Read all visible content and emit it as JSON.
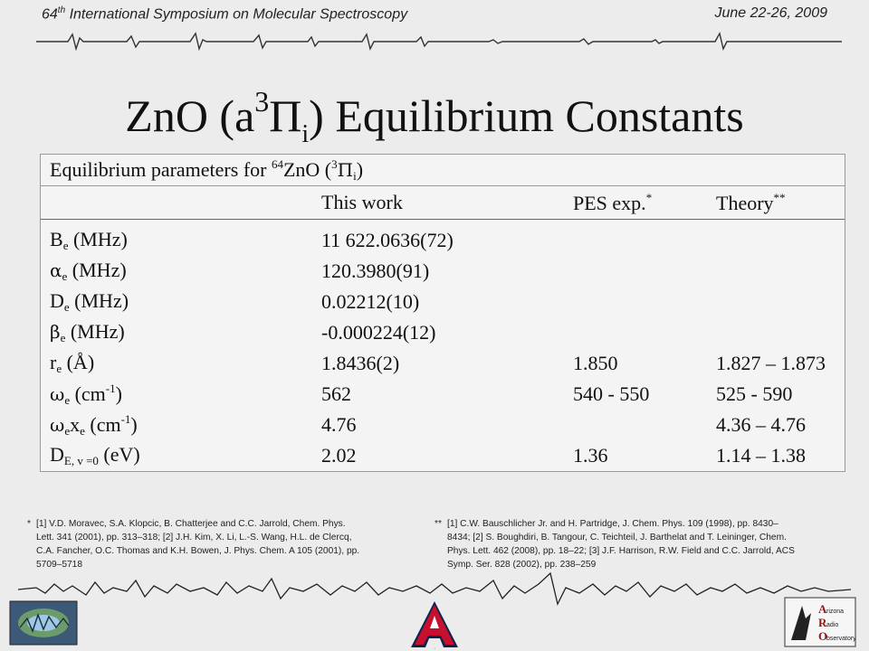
{
  "header": {
    "conference_number": "64",
    "conference_ordinal": "th",
    "conference_name": " International Symposium on Molecular Spectroscopy",
    "dates": "June 22-26, 2009"
  },
  "title": {
    "prefix": "ZnO (a",
    "state_mult": "3",
    "state_sym": "Π",
    "state_sub": "i",
    "suffix": ") Equilibrium Constants"
  },
  "table": {
    "caption": {
      "text": "Equilibrium parameters for ",
      "isotope": "64",
      "molecule": "ZnO (",
      "mult": "3",
      "sym": "Π",
      "sub": "i",
      "close": ")"
    },
    "columns": {
      "this_work": "This work",
      "pes": "PES exp.",
      "pes_mark": "*",
      "theory": "Theory",
      "theory_mark": "**"
    },
    "rows": [
      {
        "sym": "B",
        "sub": "e",
        "sup": "",
        "unit": " (MHz)",
        "this_work": "11 622.0636(72)",
        "pes": "",
        "theory": ""
      },
      {
        "sym": "α",
        "sub": "e",
        "sup": "",
        "unit": " (MHz)",
        "this_work": "120.3980(91)",
        "pes": "",
        "theory": ""
      },
      {
        "sym": "D",
        "sub": "e",
        "sup": "",
        "unit": " (MHz)",
        "this_work": "0.02212(10)",
        "pes": "",
        "theory": ""
      },
      {
        "sym": "β",
        "sub": "e",
        "sup": "",
        "unit": " (MHz)",
        "this_work": "-0.000224(12)",
        "pes": "",
        "theory": ""
      },
      {
        "sym": "r",
        "sub": "e",
        "sup": "",
        "unit": " (Å)",
        "this_work": "1.8436(2)",
        "pes": "1.850",
        "theory": "1.827 – 1.873"
      },
      {
        "sym": "ω",
        "sub": "e",
        "sup": "",
        "unit_a": " (cm",
        "unit_sup": "-1",
        "unit_b": ")",
        "this_work": "562",
        "pes": "540 - 550",
        "theory": "525 - 590"
      },
      {
        "sym": "ω",
        "sub": "e",
        "sym2": "x",
        "sub2": "e",
        "unit_a": " (cm",
        "unit_sup": "-1",
        "unit_b": ")",
        "this_work": "4.76",
        "pes": "",
        "theory": "4.36 – 4.76"
      },
      {
        "sym": "D",
        "sub": "E, v =0",
        "unit": " (eV)",
        "this_work": "2.02",
        "pes": "1.36",
        "theory": "1.14 – 1.38"
      }
    ]
  },
  "references": {
    "left": {
      "mark": "*",
      "lines": [
        "[1]  V.D. Moravec, S.A. Klopcic, B. Chatterjee and C.C. Jarrold, Chem. Phys.",
        "Lett. 341 (2001), pp. 313–318; [2] J.H. Kim, X. Li, L.-S. Wang, H.L. de Clercq,",
        "C.A. Fancher, O.C. Thomas and K.H. Bowen, J. Phys. Chem. A 105 (2001), pp.",
        "5709–5718"
      ]
    },
    "right": {
      "mark": "**",
      "lines": [
        "[1] C.W. Bauschlicher Jr. and H. Partridge, J. Chem. Phys. 109 (1998), pp. 8430–",
        "8434;  [2] S. Boughdiri, B. Tangour, C. Teichteil, J. Barthelat and T. Leininger, Chem.",
        "Phys. Lett. 462 (2008), pp. 18–22; [3] J.F. Harrison, R.W. Field and C.C. Jarrold, ACS",
        "Symp. Ser. 828 (2002), pp. 238–259"
      ]
    }
  },
  "logos": {
    "center_letter": "A",
    "right_lines": [
      "rizona",
      "adio",
      "bservatory"
    ],
    "right_initials": [
      "A",
      "R",
      "O"
    ]
  },
  "colors": {
    "background": "#ececec",
    "ua_red": "#c8102e",
    "ua_navy": "#0c234b"
  }
}
